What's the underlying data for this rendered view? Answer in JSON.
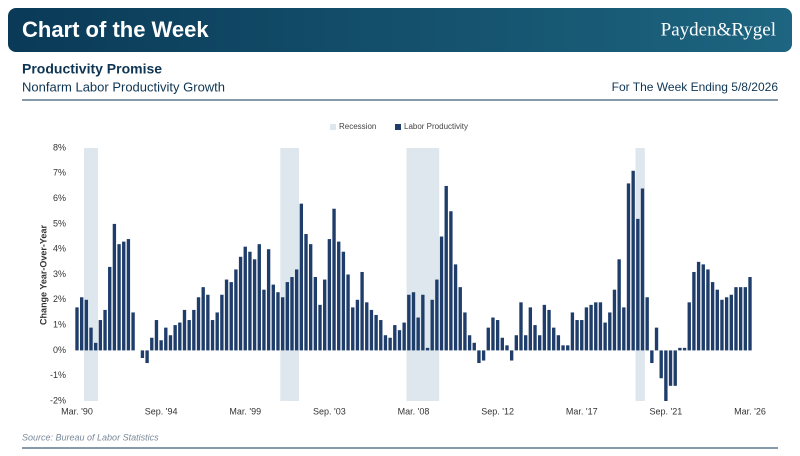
{
  "header": {
    "title": "Chart of the Week",
    "logo": "Payden&Rygel"
  },
  "chart_data": {
    "type": "bar",
    "title": "Productivity Promise",
    "subtitle": "Nonfarm Labor Productivity Growth",
    "date_note": "For The Week Ending 5/8/2026",
    "source": "Source: Bureau of Labor Statistics",
    "ylabel": "Change Year-Over-Year",
    "categories": [
      "Mar. '90",
      null,
      null,
      null,
      null,
      null,
      null,
      null,
      null,
      null,
      null,
      null,
      null,
      null,
      null,
      null,
      null,
      null,
      "Sep. '94",
      null,
      null,
      null,
      null,
      null,
      null,
      null,
      null,
      null,
      null,
      null,
      null,
      null,
      null,
      null,
      null,
      null,
      "Mar. '99",
      null,
      null,
      null,
      null,
      null,
      null,
      null,
      null,
      null,
      null,
      null,
      null,
      null,
      null,
      null,
      null,
      null,
      "Sep. '03",
      null,
      null,
      null,
      null,
      null,
      null,
      null,
      null,
      null,
      null,
      null,
      null,
      null,
      null,
      null,
      null,
      null,
      "Mar. '08",
      null,
      null,
      null,
      null,
      null,
      null,
      null,
      null,
      null,
      null,
      null,
      null,
      null,
      null,
      null,
      null,
      null,
      "Sep. '12",
      null,
      null,
      null,
      null,
      null,
      null,
      null,
      null,
      null,
      null,
      null,
      null,
      null,
      null,
      null,
      null,
      null,
      "Mar. '17",
      null,
      null,
      null,
      null,
      null,
      null,
      null,
      null,
      null,
      null,
      null,
      null,
      null,
      null,
      null,
      null,
      null,
      "Sep. '21",
      null,
      null,
      null,
      null,
      null,
      null,
      null,
      null,
      null,
      null,
      null,
      null,
      null,
      null,
      null,
      null,
      null,
      "Mar. '26"
    ],
    "series": [
      {
        "name": "Labor Productivity",
        "color": "#1f3d6b",
        "values": [
          1.7,
          2.1,
          2.0,
          0.9,
          0.3,
          1.2,
          1.6,
          3.3,
          5.0,
          4.2,
          4.3,
          4.4,
          1.5,
          0,
          -0.3,
          -0.5,
          0.5,
          1.2,
          0.4,
          0.9,
          0.6,
          1.0,
          1.1,
          1.6,
          1.2,
          1.6,
          2.1,
          2.5,
          2.2,
          1.2,
          1.5,
          2.2,
          2.8,
          2.7,
          3.2,
          3.7,
          4.1,
          3.9,
          3.6,
          4.2,
          2.4,
          4.0,
          2.6,
          2.3,
          2.1,
          2.7,
          2.9,
          3.2,
          5.8,
          4.6,
          4.2,
          2.9,
          1.8,
          2.8,
          4.4,
          5.6,
          4.3,
          3.9,
          3.0,
          1.7,
          2.0,
          3.1,
          1.9,
          1.6,
          1.4,
          1.2,
          0.6,
          0.5,
          1.0,
          0.8,
          1.1,
          2.2,
          2.3,
          1.3,
          2.2,
          0.1,
          2.0,
          2.8,
          4.5,
          6.5,
          5.5,
          3.4,
          2.5,
          1.5,
          0.6,
          0.3,
          -0.5,
          -0.4,
          0.9,
          1.3,
          1.2,
          0.5,
          0.2,
          -0.4,
          0.6,
          1.9,
          0.6,
          1.7,
          1.0,
          0.6,
          1.8,
          1.6,
          0.9,
          0.6,
          0.2,
          0.2,
          1.5,
          1.2,
          1.2,
          1.7,
          1.8,
          1.9,
          1.9,
          1.1,
          1.5,
          2.4,
          3.6,
          1.7,
          6.6,
          7.1,
          5.2,
          6.4,
          2.1,
          -0.5,
          0.9,
          -1.1,
          -2.0,
          -1.4,
          -1.4,
          0.1,
          0.1,
          1.9,
          3.1,
          3.5,
          3.4,
          3.2,
          2.7,
          2.4,
          2.0,
          2.1,
          2.2,
          2.5,
          2.5,
          2.5,
          2.9
        ]
      }
    ],
    "recession": {
      "name": "Recession",
      "color": "#dfe7ee",
      "spans": [
        [
          2,
          4
        ],
        [
          44,
          47
        ],
        [
          71,
          77
        ],
        [
          120,
          121
        ]
      ]
    },
    "ylim": [
      -2,
      8
    ],
    "yticks": [
      {
        "value": -2,
        "label": "-2%"
      },
      {
        "value": -1,
        "label": "-1%"
      },
      {
        "value": 0,
        "label": "0%"
      },
      {
        "value": 1,
        "label": "1%"
      },
      {
        "value": 2,
        "label": "2%"
      },
      {
        "value": 3,
        "label": "3%"
      },
      {
        "value": 4,
        "label": "4%"
      },
      {
        "value": 5,
        "label": "5%"
      },
      {
        "value": 6,
        "label": "6%"
      },
      {
        "value": 7,
        "label": "7%"
      },
      {
        "value": 8,
        "label": "8%"
      }
    ],
    "grid": false
  }
}
